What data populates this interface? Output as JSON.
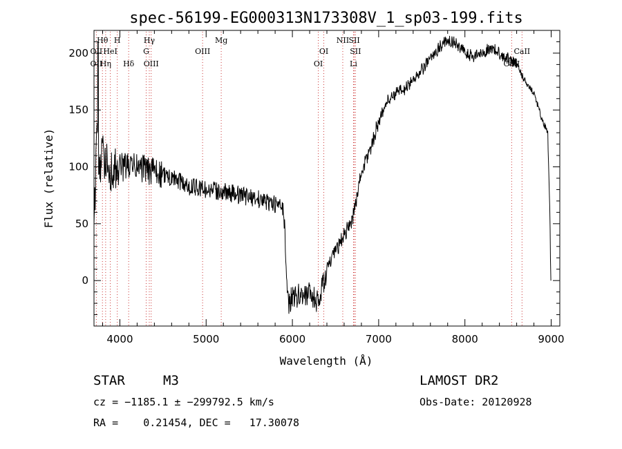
{
  "chart_data": {
    "type": "line",
    "title": "spec-56199-EG000313N173308V_1_sp03-199.fits",
    "xlabel": "Wavelength (Å)",
    "ylabel": "Flux (relative)",
    "xlim": [
      3700,
      9100
    ],
    "ylim": [
      -40,
      220
    ],
    "xticks": [
      4000,
      5000,
      6000,
      7000,
      8000,
      9000
    ],
    "yticks": [
      0,
      50,
      100,
      150,
      200
    ],
    "grid": false,
    "line_color": "#000000",
    "marker_color": "#cc3333",
    "spectrum_anchors": [
      [
        3700,
        40
      ],
      [
        3730,
        130
      ],
      [
        3760,
        95
      ],
      [
        3800,
        110
      ],
      [
        3850,
        105
      ],
      [
        3900,
        95
      ],
      [
        4000,
        100
      ],
      [
        4200,
        100
      ],
      [
        4400,
        95
      ],
      [
        4600,
        90
      ],
      [
        4800,
        83
      ],
      [
        5000,
        80
      ],
      [
        5200,
        78
      ],
      [
        5400,
        75
      ],
      [
        5600,
        72
      ],
      [
        5800,
        67
      ],
      [
        5900,
        62
      ],
      [
        5930,
        10
      ],
      [
        5960,
        -20
      ],
      [
        6000,
        -15
      ],
      [
        6100,
        -12
      ],
      [
        6200,
        -12
      ],
      [
        6300,
        -20
      ],
      [
        6350,
        -5
      ],
      [
        6400,
        10
      ],
      [
        6500,
        25
      ],
      [
        6600,
        40
      ],
      [
        6700,
        55
      ],
      [
        6750,
        75
      ],
      [
        6800,
        95
      ],
      [
        6900,
        115
      ],
      [
        7000,
        140
      ],
      [
        7100,
        158
      ],
      [
        7200,
        165
      ],
      [
        7300,
        168
      ],
      [
        7400,
        177
      ],
      [
        7500,
        185
      ],
      [
        7600,
        195
      ],
      [
        7700,
        205
      ],
      [
        7800,
        212
      ],
      [
        7900,
        208
      ],
      [
        8000,
        200
      ],
      [
        8100,
        197
      ],
      [
        8200,
        200
      ],
      [
        8300,
        205
      ],
      [
        8400,
        200
      ],
      [
        8500,
        195
      ],
      [
        8600,
        190
      ],
      [
        8700,
        175
      ],
      [
        8800,
        165
      ],
      [
        8900,
        140
      ],
      [
        8960,
        130
      ],
      [
        8985,
        60
      ],
      [
        8995,
        0
      ],
      [
        9000,
        0
      ]
    ],
    "spectral_lines": [
      {
        "label": "Hθ",
        "wavelength": 3798,
        "row": 0
      },
      {
        "label": "H",
        "wavelength": 3970,
        "row": 0
      },
      {
        "label": "Hγ",
        "wavelength": 4341,
        "row": 0
      },
      {
        "label": "Mg",
        "wavelength": 5175,
        "row": 0
      },
      {
        "label": "NII",
        "wavelength": 6584,
        "row": 0
      },
      {
        "label": "SII",
        "wavelength": 6717,
        "row": 0
      },
      {
        "label": "OII",
        "wavelength": 3727,
        "row": 1
      },
      {
        "label": "HeI",
        "wavelength": 3889,
        "row": 1
      },
      {
        "label": "G",
        "wavelength": 4305,
        "row": 1
      },
      {
        "label": "OIII",
        "wavelength": 4959,
        "row": 1
      },
      {
        "label": "OI",
        "wavelength": 6364,
        "row": 1
      },
      {
        "label": "SII",
        "wavelength": 6731,
        "row": 1
      },
      {
        "label": "CaII",
        "wavelength": 8662,
        "row": 1
      },
      {
        "label": "OII",
        "wavelength": 3727,
        "row": 2
      },
      {
        "label": "Hη",
        "wavelength": 3835,
        "row": 2
      },
      {
        "label": "Hδ",
        "wavelength": 4102,
        "row": 2
      },
      {
        "label": "OIII",
        "wavelength": 4363,
        "row": 2
      },
      {
        "label": "OI",
        "wavelength": 6300,
        "row": 2
      },
      {
        "label": "Li",
        "wavelength": 6708,
        "row": 2
      },
      {
        "label": "CaII",
        "wavelength": 8542,
        "row": 2
      }
    ]
  },
  "info": {
    "class": "STAR",
    "subclass": "M3",
    "survey": "LAMOST DR2",
    "redshift": "cz = −1185.1 ± −299792.5 km/s",
    "obs_date": "Obs-Date: 20120928",
    "coords": "RA =    0.21454, DEC =   17.30078"
  }
}
